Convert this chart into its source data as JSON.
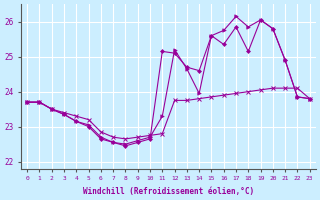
{
  "xlabel": "Windchill (Refroidissement éolien,°C)",
  "bg_color": "#cceeff",
  "line_color": "#990099",
  "grid_color": "#ffffff",
  "xlim": [
    -0.5,
    23.5
  ],
  "ylim": [
    21.8,
    26.5
  ],
  "yticks": [
    22,
    23,
    24,
    25,
    26
  ],
  "xticks": [
    0,
    1,
    2,
    3,
    4,
    5,
    6,
    7,
    8,
    9,
    10,
    11,
    12,
    13,
    14,
    15,
    16,
    17,
    18,
    19,
    20,
    21,
    22,
    23
  ],
  "series1_x": [
    0,
    1,
    2,
    3,
    4,
    5,
    6,
    7,
    8,
    9,
    10,
    11,
    12,
    13,
    14,
    15,
    16,
    17,
    18,
    19,
    20,
    21,
    22,
    23
  ],
  "series1_y": [
    23.7,
    23.7,
    23.5,
    23.4,
    23.3,
    23.2,
    22.85,
    22.7,
    22.65,
    22.7,
    22.75,
    22.8,
    23.75,
    23.75,
    23.8,
    23.85,
    23.9,
    23.95,
    24.0,
    24.05,
    24.1,
    24.1,
    24.1,
    23.8
  ],
  "series2_x": [
    0,
    1,
    2,
    3,
    4,
    5,
    6,
    7,
    8,
    9,
    10,
    11,
    12,
    13,
    14,
    15,
    16,
    17,
    18,
    19,
    20,
    21,
    22,
    23
  ],
  "series2_y": [
    23.7,
    23.7,
    23.5,
    23.35,
    23.15,
    23.0,
    22.65,
    22.55,
    22.45,
    22.55,
    22.65,
    25.15,
    25.1,
    24.7,
    24.6,
    25.6,
    25.35,
    25.85,
    25.15,
    26.05,
    25.8,
    24.9,
    23.85,
    23.8
  ],
  "series3_x": [
    0,
    1,
    2,
    3,
    4,
    5,
    6,
    7,
    8,
    9,
    10,
    11,
    12,
    13,
    14,
    15,
    16,
    17,
    18,
    19,
    20,
    21,
    22,
    23
  ],
  "series3_y": [
    23.7,
    23.7,
    23.5,
    23.35,
    23.15,
    23.05,
    22.7,
    22.55,
    22.5,
    22.6,
    22.7,
    23.3,
    25.2,
    24.65,
    23.95,
    25.6,
    25.75,
    26.15,
    25.85,
    26.05,
    25.8,
    24.9,
    23.85,
    23.8
  ]
}
